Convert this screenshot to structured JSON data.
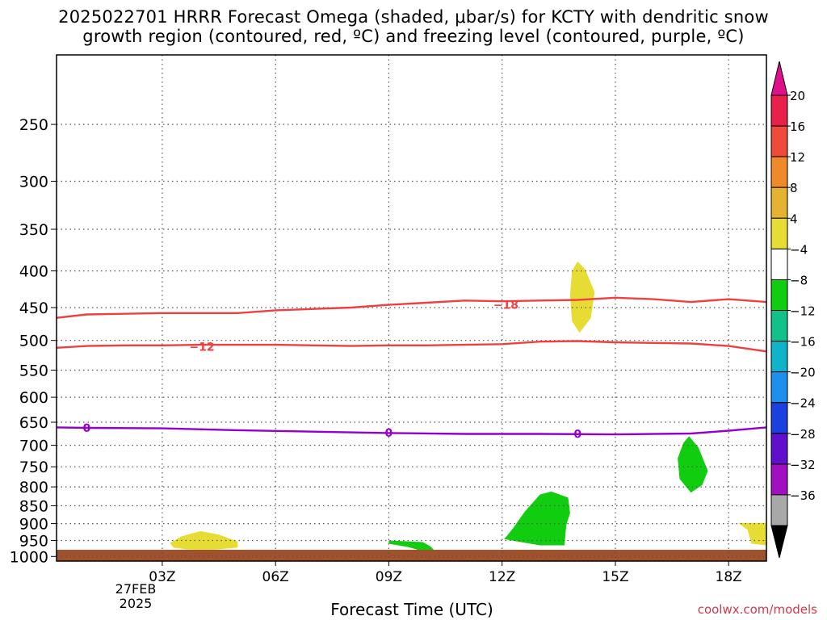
{
  "chart_data": {
    "type": "heatmap",
    "title_line1": "2025022701 HRRR Forecast Omega (shaded, μbar/s) for KCTY with dendritic snow",
    "title_line2": "growth region (contoured, red, ºC) and freezing level (contoured, purple, ºC)",
    "xlabel": "Forecast Time (UTC)",
    "ylabel": "",
    "x_unit": "hours_after_00Z_27FEB2025",
    "x_range": [
      0.2,
      19
    ],
    "x_ticks": [
      {
        "value": 3,
        "label": "03Z"
      },
      {
        "value": 6,
        "label": "06Z"
      },
      {
        "value": 9,
        "label": "09Z"
      },
      {
        "value": 12,
        "label": "12Z"
      },
      {
        "value": 15,
        "label": "15Z"
      },
      {
        "value": 18,
        "label": "18Z"
      }
    ],
    "date_label_line1": "27FEB",
    "date_label_line2": "2025",
    "y_unit": "hPa",
    "y_scale": "log",
    "y_range": [
      1015,
      200
    ],
    "y_ticks": [
      250,
      300,
      350,
      400,
      450,
      500,
      550,
      600,
      650,
      700,
      750,
      800,
      850,
      900,
      950,
      1000
    ],
    "grid": true,
    "colorbar": {
      "placement": "right",
      "labels": [
        "20",
        "16",
        "12",
        "8",
        "4",
        "−4",
        "−8",
        "−12",
        "−16",
        "−20",
        "−24",
        "−28",
        "−32",
        "−36"
      ],
      "colors": [
        "#e8204a",
        "#ee4b3a",
        "#ee8a2a",
        "#e6b232",
        "#e6dc34",
        "#ffffff",
        "#10cd10",
        "#12c08a",
        "#10b4c8",
        "#1c90ec",
        "#1a40e0",
        "#6010cc",
        "#a010c0",
        "#a8a8a8"
      ],
      "top_arrow_color": "#e0108a",
      "bottom_arrow_color": "#000000"
    },
    "surface_color": "#a0522d",
    "omega_regions": [
      {
        "color": "#e6dc34",
        "points": [
          [
            3.2,
            958
          ],
          [
            3.5,
            938
          ],
          [
            4.0,
            922
          ],
          [
            4.5,
            932
          ],
          [
            5.0,
            953
          ],
          [
            5.0,
            972
          ],
          [
            4.4,
            978
          ],
          [
            3.7,
            978
          ],
          [
            3.3,
            972
          ]
        ]
      },
      {
        "color": "#e6dc34",
        "points": [
          [
            14.0,
            388
          ],
          [
            14.2,
            398
          ],
          [
            14.45,
            428
          ],
          [
            14.35,
            465
          ],
          [
            14.05,
            488
          ],
          [
            13.85,
            470
          ],
          [
            13.8,
            432
          ],
          [
            13.85,
            400
          ]
        ]
      },
      {
        "color": "#e6dc34",
        "points": [
          [
            18.25,
            898
          ],
          [
            19.0,
            898
          ],
          [
            19.0,
            965
          ],
          [
            18.6,
            960
          ],
          [
            18.5,
            918
          ]
        ]
      },
      {
        "color": "#10cd10",
        "points": [
          [
            9.0,
            950
          ],
          [
            9.9,
            955
          ],
          [
            10.1,
            968
          ],
          [
            10.2,
            980
          ],
          [
            9.95,
            985
          ],
          [
            9.5,
            970
          ],
          [
            9.0,
            960
          ]
        ]
      },
      {
        "color": "#10cd10",
        "points": [
          [
            12.1,
            940
          ],
          [
            12.3,
            912
          ],
          [
            12.6,
            866
          ],
          [
            13.0,
            820
          ],
          [
            13.3,
            812
          ],
          [
            13.75,
            828
          ],
          [
            13.8,
            870
          ],
          [
            13.7,
            904
          ],
          [
            13.65,
            965
          ],
          [
            13.0,
            965
          ],
          [
            12.5,
            955
          ],
          [
            12.05,
            946
          ]
        ]
      },
      {
        "color": "#10cd10",
        "points": [
          [
            16.95,
            680
          ],
          [
            17.2,
            705
          ],
          [
            17.45,
            760
          ],
          [
            17.3,
            795
          ],
          [
            17.0,
            815
          ],
          [
            16.7,
            780
          ],
          [
            16.65,
            730
          ],
          [
            16.8,
            695
          ]
        ]
      }
    ],
    "contours": [
      {
        "kind": "dendritic",
        "color": "#ee4040",
        "label": "−18",
        "label_at": [
          12.1,
          446
        ],
        "points": [
          [
            0.2,
            465
          ],
          [
            1.0,
            460
          ],
          [
            3.0,
            458
          ],
          [
            5.0,
            458
          ],
          [
            6.0,
            454
          ],
          [
            8.0,
            450
          ],
          [
            9.0,
            446
          ],
          [
            10.0,
            443
          ],
          [
            11.0,
            440
          ],
          [
            12.0,
            441
          ],
          [
            13.0,
            440
          ],
          [
            14.0,
            439
          ],
          [
            15.0,
            436
          ],
          [
            16.0,
            438
          ],
          [
            17.0,
            442
          ],
          [
            18.0,
            438
          ],
          [
            19.0,
            442
          ]
        ]
      },
      {
        "kind": "dendritic",
        "color": "#ee4040",
        "label": "−12",
        "label_at": [
          4.05,
          510
        ],
        "points": [
          [
            0.2,
            512
          ],
          [
            1.0,
            509
          ],
          [
            2.0,
            508
          ],
          [
            3.0,
            508
          ],
          [
            4.0,
            507
          ],
          [
            6.0,
            507
          ],
          [
            7.0,
            508
          ],
          [
            8.0,
            509
          ],
          [
            9.0,
            508
          ],
          [
            10.0,
            508
          ],
          [
            11.0,
            507
          ],
          [
            12.0,
            506
          ],
          [
            13.0,
            502
          ],
          [
            14.0,
            501
          ],
          [
            15.0,
            503
          ],
          [
            16.0,
            504
          ],
          [
            17.0,
            505
          ],
          [
            18.0,
            509
          ],
          [
            19.0,
            518
          ]
        ]
      },
      {
        "kind": "freezing",
        "color": "#9400cc",
        "label": "0",
        "labels_at": [
          [
            1.0,
            662
          ],
          [
            9.0,
            672
          ],
          [
            14.0,
            675
          ]
        ],
        "points": [
          [
            0.2,
            661
          ],
          [
            1.0,
            662
          ],
          [
            3.0,
            663
          ],
          [
            5.0,
            667
          ],
          [
            7.0,
            670
          ],
          [
            9.0,
            673
          ],
          [
            11.0,
            675
          ],
          [
            13.0,
            675
          ],
          [
            15.0,
            676
          ],
          [
            17.0,
            674
          ],
          [
            18.0,
            668
          ],
          [
            19.0,
            661
          ]
        ]
      }
    ]
  },
  "credit": "coolwx.com/models"
}
